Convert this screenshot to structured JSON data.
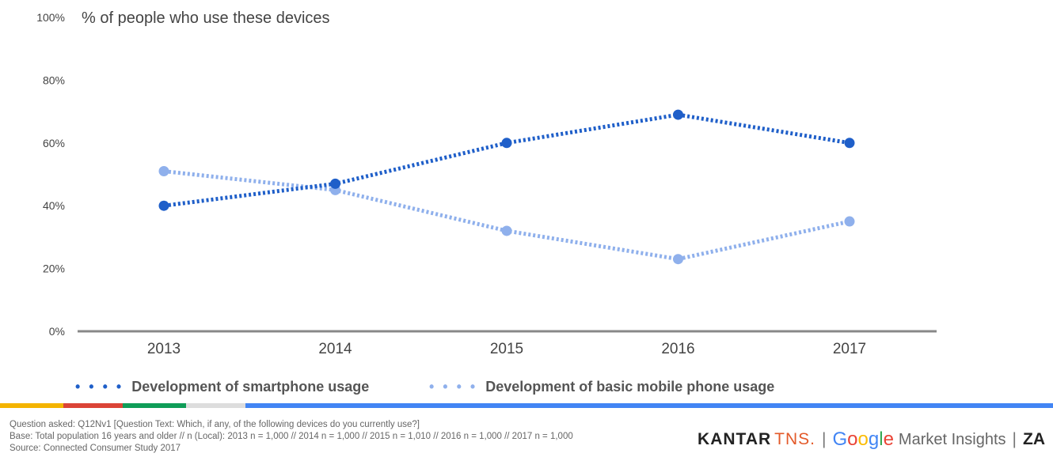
{
  "chart_data": {
    "type": "line",
    "title": "% of people who use these devices",
    "categories": [
      "2013",
      "2014",
      "2015",
      "2016",
      "2017"
    ],
    "y_ticks": [
      "0%",
      "20%",
      "40%",
      "60%",
      "80%",
      "100%"
    ],
    "ylim": [
      0,
      100
    ],
    "grid": false,
    "legend_position": "bottom",
    "series": [
      {
        "name": "Development of smartphone usage",
        "values": [
          40,
          47,
          60,
          69,
          60
        ],
        "color": "#1f5fc9"
      },
      {
        "name": "Development of basic mobile phone usage",
        "values": [
          51,
          45,
          32,
          23,
          35
        ],
        "color": "#8fb0ec"
      }
    ]
  },
  "footnotes": {
    "question": "Question asked: Q12Nv1 [Question Text: Which, if any, of the following devices do you currently use?]",
    "base": "Base: Total population 16 years and older // n (Local): 2013 n = 1,000 // 2014 n = 1,000 // 2015 n = 1,010 // 2016 n = 1,000 // 2017 n = 1,000",
    "source": "Source: Connected Consumer Study 2017"
  },
  "branding": {
    "kantar": "KANTAR",
    "tns": "TNS.",
    "google": "Google",
    "market_insights": "Market Insights",
    "country": "ZA",
    "google_colors": [
      "#4285F4",
      "#EA4335",
      "#FBBC05",
      "#4285F4",
      "#34A853",
      "#EA4335"
    ]
  },
  "stripe_colors": [
    "#f4b400",
    "#db4437",
    "#0f9d58",
    "#dddddd",
    "#4285f4"
  ]
}
